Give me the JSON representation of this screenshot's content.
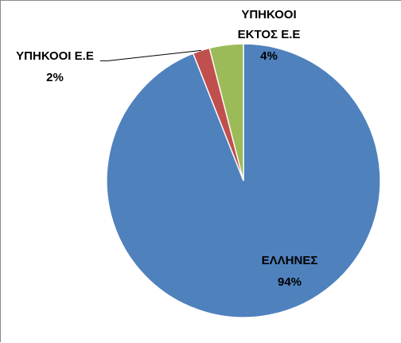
{
  "chart_data": {
    "type": "pie",
    "title": "",
    "start_angle_deg": 0,
    "direction": "clockwise",
    "slices": [
      {
        "label": "ΕΛΛΗΝΕΣ",
        "value": 94,
        "percent_label": "94%",
        "color": "#4F81BD"
      },
      {
        "label": "ΥΠΗΚΟΟΙ Ε.Ε",
        "value": 2,
        "percent_label": "2%",
        "color": "#C0504D"
      },
      {
        "label_lines": [
          "ΥΠΗΚΟΟΙ",
          "ΕΚΤΟΣ Ε.Ε"
        ],
        "value": 4,
        "percent_label": "4%",
        "color": "#9BBB59"
      }
    ],
    "legend": "none",
    "data_labels": "category and percentage"
  }
}
